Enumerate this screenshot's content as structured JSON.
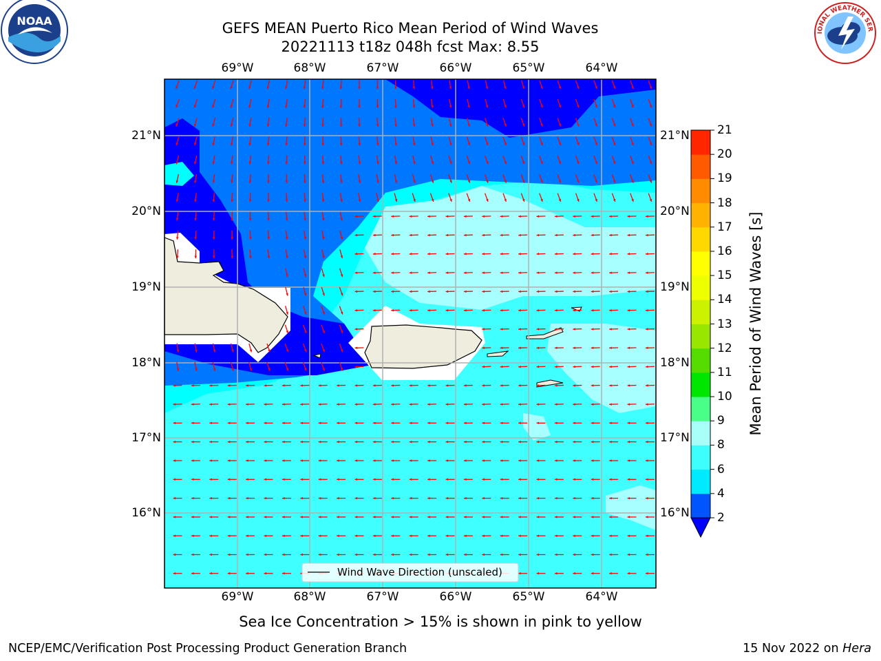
{
  "header": {
    "title_line1": "GEFS MEAN Puerto Rico Mean Period of Wind Waves",
    "title_line2": "20221113 t18z 048h fcst   Max: 8.55"
  },
  "axes": {
    "lon_labels": [
      "69°W",
      "68°W",
      "67°W",
      "66°W",
      "65°W",
      "64°W"
    ],
    "lat_labels": [
      "21°N",
      "20°N",
      "19°N",
      "18°N",
      "17°N",
      "16°N"
    ]
  },
  "legend": {
    "label": "Wind Wave Direction (unscaled)"
  },
  "colorbar": {
    "label": "Mean Period of Wind Waves [s]",
    "ticks": [
      "2",
      "4",
      "6",
      "8",
      "9",
      "10",
      "11",
      "12",
      "13",
      "14",
      "15",
      "16",
      "17",
      "18",
      "19",
      "20",
      "21"
    ],
    "colors": [
      "#0055ff",
      "#00eaff",
      "#3dfcfc",
      "#a8fffa",
      "#4aff88",
      "#00e600",
      "#55dd00",
      "#99e600",
      "#ccf200",
      "#eeff00",
      "#ffff00",
      "#ffd800",
      "#ffb300",
      "#ff8c00",
      "#ff5a00",
      "#ff2600",
      "#ff0000"
    ],
    "extend_color": "#0000ff"
  },
  "map_colors": {
    "level_lt2": "#0000ff",
    "level_2_4": "#0077ff",
    "level_4_6": "#00ffff",
    "level_6_8": "#40ffff",
    "level_8_9": "#a8ffff",
    "land": "#efedde",
    "vectors": "#ff0000"
  },
  "note": "Sea Ice Concentration > 15% is shown in pink to yellow",
  "footer": {
    "left": "NCEP/EMC/Verification Post Processing Product Generation Branch",
    "right_date": "15 Nov 2022 on ",
    "right_host": "Hera"
  },
  "logos": {
    "noaa": "NOAA",
    "nws": "NATIONAL WEATHER SERVICE"
  }
}
